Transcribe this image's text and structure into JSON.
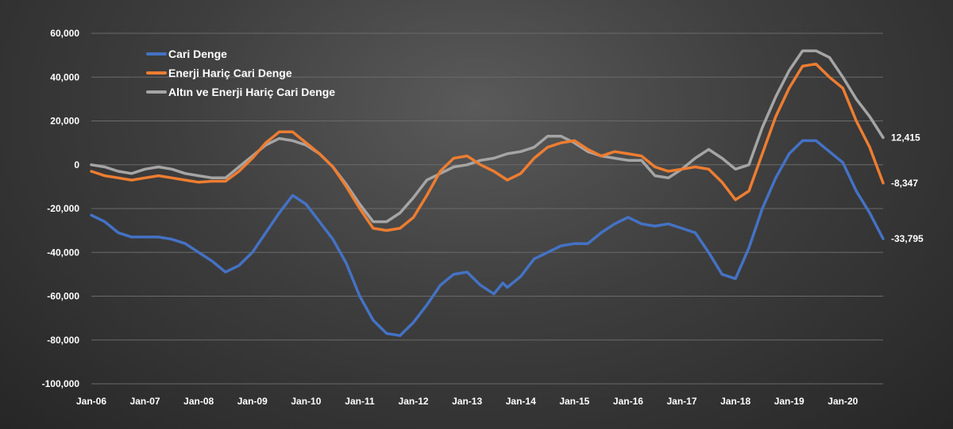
{
  "chart_data": {
    "type": "line",
    "xlabel": "",
    "ylabel": "",
    "ylim": [
      -100000,
      60000
    ],
    "yticks": [
      60000,
      40000,
      20000,
      0,
      -20000,
      -40000,
      -60000,
      -80000,
      -100000
    ],
    "ytick_labels": [
      "60,000",
      "40,000",
      "20,000",
      "0",
      "-20,000",
      "-40,000",
      "-60,000",
      "-80,000",
      "-100,000"
    ],
    "x_range": [
      "2006-01",
      "2020-10"
    ],
    "xtick_labels": [
      "Jan-06",
      "Jan-07",
      "Jan-08",
      "Jan-09",
      "Jan-10",
      "Jan-11",
      "Jan-12",
      "Jan-13",
      "Jan-14",
      "Jan-15",
      "Jan-16",
      "Jan-17",
      "Jan-18",
      "Jan-19",
      "Jan-20"
    ],
    "grid": true,
    "legend_position": "top-left",
    "series": [
      {
        "name": "Cari Denge",
        "color": "#4472c4",
        "end_label": "-33,795",
        "points": [
          [
            "2006-01",
            -23000
          ],
          [
            "2006-04",
            -26000
          ],
          [
            "2006-07",
            -31000
          ],
          [
            "2006-10",
            -33000
          ],
          [
            "2007-01",
            -33000
          ],
          [
            "2007-04",
            -33000
          ],
          [
            "2007-07",
            -34000
          ],
          [
            "2007-10",
            -36000
          ],
          [
            "2008-01",
            -40000
          ],
          [
            "2008-04",
            -44000
          ],
          [
            "2008-07",
            -49000
          ],
          [
            "2008-10",
            -46000
          ],
          [
            "2009-01",
            -40000
          ],
          [
            "2009-04",
            -31000
          ],
          [
            "2009-07",
            -22000
          ],
          [
            "2009-10",
            -14000
          ],
          [
            "2010-01",
            -18000
          ],
          [
            "2010-04",
            -26000
          ],
          [
            "2010-07",
            -34000
          ],
          [
            "2010-10",
            -45000
          ],
          [
            "2011-01",
            -60000
          ],
          [
            "2011-04",
            -71000
          ],
          [
            "2011-07",
            -77000
          ],
          [
            "2011-10",
            -78000
          ],
          [
            "2012-01",
            -72000
          ],
          [
            "2012-04",
            -64000
          ],
          [
            "2012-07",
            -55000
          ],
          [
            "2012-10",
            -50000
          ],
          [
            "2013-01",
            -49000
          ],
          [
            "2013-04",
            -55000
          ],
          [
            "2013-07",
            -59000
          ],
          [
            "2013-09",
            -54000
          ],
          [
            "2013-10",
            -56000
          ],
          [
            "2014-01",
            -51000
          ],
          [
            "2014-04",
            -43000
          ],
          [
            "2014-07",
            -40000
          ],
          [
            "2014-10",
            -37000
          ],
          [
            "2015-01",
            -36000
          ],
          [
            "2015-04",
            -36000
          ],
          [
            "2015-07",
            -31000
          ],
          [
            "2015-10",
            -27000
          ],
          [
            "2016-01",
            -24000
          ],
          [
            "2016-04",
            -27000
          ],
          [
            "2016-07",
            -28000
          ],
          [
            "2016-10",
            -27000
          ],
          [
            "2017-01",
            -29000
          ],
          [
            "2017-04",
            -31000
          ],
          [
            "2017-07",
            -40000
          ],
          [
            "2017-10",
            -50000
          ],
          [
            "2018-01",
            -52000
          ],
          [
            "2018-04",
            -38000
          ],
          [
            "2018-07",
            -20000
          ],
          [
            "2018-10",
            -6000
          ],
          [
            "2019-01",
            5000
          ],
          [
            "2019-04",
            11000
          ],
          [
            "2019-07",
            11000
          ],
          [
            "2019-10",
            6000
          ],
          [
            "2020-01",
            1000
          ],
          [
            "2020-04",
            -12000
          ],
          [
            "2020-07",
            -22000
          ],
          [
            "2020-10",
            -33795
          ]
        ]
      },
      {
        "name": "Enerji Hariç Cari Denge",
        "color": "#ed7d31",
        "end_label": "-8,347",
        "points": [
          [
            "2006-01",
            -3000
          ],
          [
            "2006-04",
            -5000
          ],
          [
            "2006-07",
            -6000
          ],
          [
            "2006-10",
            -7000
          ],
          [
            "2007-01",
            -6000
          ],
          [
            "2007-04",
            -5000
          ],
          [
            "2007-07",
            -6000
          ],
          [
            "2007-10",
            -7000
          ],
          [
            "2008-01",
            -8000
          ],
          [
            "2008-04",
            -7500
          ],
          [
            "2008-07",
            -7500
          ],
          [
            "2008-10",
            -3000
          ],
          [
            "2009-01",
            3000
          ],
          [
            "2009-04",
            10000
          ],
          [
            "2009-07",
            15000
          ],
          [
            "2009-10",
            15000
          ],
          [
            "2010-01",
            10000
          ],
          [
            "2010-04",
            5000
          ],
          [
            "2010-07",
            -1000
          ],
          [
            "2010-10",
            -10000
          ],
          [
            "2011-01",
            -20000
          ],
          [
            "2011-04",
            -29000
          ],
          [
            "2011-07",
            -30000
          ],
          [
            "2011-10",
            -29000
          ],
          [
            "2012-01",
            -24000
          ],
          [
            "2012-04",
            -14000
          ],
          [
            "2012-07",
            -3000
          ],
          [
            "2012-10",
            3000
          ],
          [
            "2013-01",
            4000
          ],
          [
            "2013-04",
            0
          ],
          [
            "2013-07",
            -3000
          ],
          [
            "2013-10",
            -7000
          ],
          [
            "2014-01",
            -4000
          ],
          [
            "2014-04",
            3000
          ],
          [
            "2014-07",
            8000
          ],
          [
            "2014-10",
            10000
          ],
          [
            "2015-01",
            11000
          ],
          [
            "2015-04",
            7000
          ],
          [
            "2015-07",
            4000
          ],
          [
            "2015-10",
            6000
          ],
          [
            "2016-01",
            5000
          ],
          [
            "2016-04",
            4000
          ],
          [
            "2016-07",
            -1000
          ],
          [
            "2016-10",
            -3000
          ],
          [
            "2017-01",
            -2000
          ],
          [
            "2017-04",
            -1000
          ],
          [
            "2017-07",
            -2000
          ],
          [
            "2017-10",
            -8000
          ],
          [
            "2018-01",
            -16000
          ],
          [
            "2018-04",
            -12000
          ],
          [
            "2018-07",
            5000
          ],
          [
            "2018-10",
            22000
          ],
          [
            "2019-01",
            35000
          ],
          [
            "2019-04",
            45000
          ],
          [
            "2019-07",
            46000
          ],
          [
            "2019-10",
            40000
          ],
          [
            "2020-01",
            35000
          ],
          [
            "2020-04",
            20000
          ],
          [
            "2020-07",
            8000
          ],
          [
            "2020-10",
            -8347
          ]
        ]
      },
      {
        "name": "Altın ve Enerji Hariç Cari Denge",
        "color": "#a5a5a5",
        "end_label": "12,415",
        "points": [
          [
            "2006-01",
            0
          ],
          [
            "2006-04",
            -1000
          ],
          [
            "2006-07",
            -3000
          ],
          [
            "2006-10",
            -4000
          ],
          [
            "2007-01",
            -2000
          ],
          [
            "2007-04",
            -1000
          ],
          [
            "2007-07",
            -2000
          ],
          [
            "2007-10",
            -4000
          ],
          [
            "2008-01",
            -5000
          ],
          [
            "2008-04",
            -6000
          ],
          [
            "2008-07",
            -6000
          ],
          [
            "2008-10",
            -1000
          ],
          [
            "2009-01",
            4000
          ],
          [
            "2009-04",
            9000
          ],
          [
            "2009-07",
            12000
          ],
          [
            "2009-10",
            11000
          ],
          [
            "2010-01",
            9000
          ],
          [
            "2010-04",
            5000
          ],
          [
            "2010-07",
            -1000
          ],
          [
            "2010-10",
            -9000
          ],
          [
            "2011-01",
            -18000
          ],
          [
            "2011-04",
            -26000
          ],
          [
            "2011-07",
            -26000
          ],
          [
            "2011-10",
            -22000
          ],
          [
            "2012-01",
            -15000
          ],
          [
            "2012-04",
            -7000
          ],
          [
            "2012-07",
            -4000
          ],
          [
            "2012-10",
            -1000
          ],
          [
            "2013-01",
            0
          ],
          [
            "2013-04",
            2000
          ],
          [
            "2013-07",
            3000
          ],
          [
            "2013-10",
            5000
          ],
          [
            "2014-01",
            6000
          ],
          [
            "2014-04",
            8000
          ],
          [
            "2014-07",
            13000
          ],
          [
            "2014-10",
            13000
          ],
          [
            "2015-01",
            10000
          ],
          [
            "2015-04",
            6000
          ],
          [
            "2015-07",
            4000
          ],
          [
            "2015-10",
            3000
          ],
          [
            "2016-01",
            2000
          ],
          [
            "2016-04",
            2000
          ],
          [
            "2016-07",
            -5000
          ],
          [
            "2016-10",
            -6000
          ],
          [
            "2017-01",
            -2000
          ],
          [
            "2017-04",
            3000
          ],
          [
            "2017-07",
            7000
          ],
          [
            "2017-10",
            3000
          ],
          [
            "2018-01",
            -2000
          ],
          [
            "2018-04",
            0
          ],
          [
            "2018-07",
            17000
          ],
          [
            "2018-10",
            31000
          ],
          [
            "2019-01",
            43000
          ],
          [
            "2019-04",
            52000
          ],
          [
            "2019-07",
            52000
          ],
          [
            "2019-10",
            49000
          ],
          [
            "2020-01",
            40000
          ],
          [
            "2020-04",
            30000
          ],
          [
            "2020-07",
            22000
          ],
          [
            "2020-10",
            12415
          ]
        ]
      }
    ]
  }
}
